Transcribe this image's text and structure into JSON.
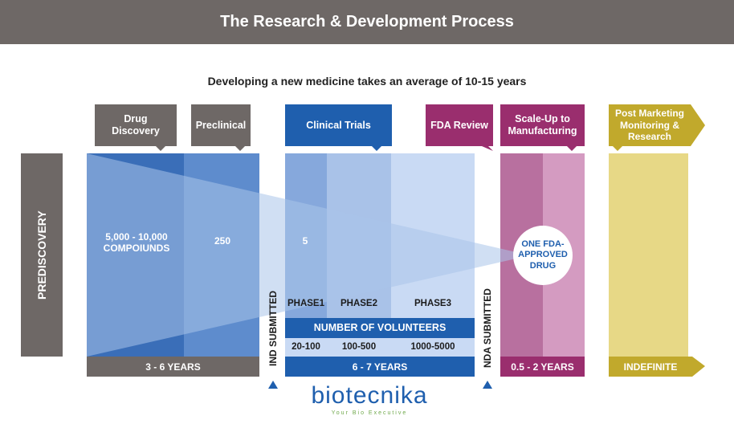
{
  "title": "The Research & Development Process",
  "subtitle": "Developing a new medicine takes an average of 10-15 years",
  "prediscovery": "PREDISCOVERY",
  "stages": {
    "drug_discovery": "Drug Discovery",
    "preclinical": "Preclinical",
    "clinical_trials": "Clinical Trials",
    "fda_review": "FDA Review",
    "scale_up": "Scale-Up to Manufacturing",
    "post_marketing": "Post Marketing Monitoring & Research"
  },
  "counts": {
    "compounds": "5,000 - 10,000 COMPOIUNDS",
    "preclinical": "250",
    "clinical": "5",
    "approved": "ONE FDA-APPROVED DRUG"
  },
  "phases": [
    "PHASE1",
    "PHASE2",
    "PHASE3"
  ],
  "volunteers_header": "NUMBER OF VOLUNTEERS",
  "volunteers": [
    "20-100",
    "100-500",
    "1000-5000"
  ],
  "milestones": {
    "ind": "IND SUBMITTED",
    "nda": "NDA SUBMITTED"
  },
  "durations": {
    "discovery": "3 - 6 YEARS",
    "clinical": "6 - 7 YEARS",
    "scale_up": "0.5 - 2 YEARS",
    "post_marketing": "INDEFINITE"
  },
  "logo": {
    "name": "biotecnika",
    "tagline": "Your Bio Executive"
  },
  "colors": {
    "gray": "#6e6866",
    "blue_dark": "#1f5fae",
    "blue_mid": "#5e8ccd",
    "blue_light": "#a9c2e8",
    "purple": "#9a2e6e",
    "purple_light": "#d49bc1",
    "gold": "#c1a92c",
    "gold_light": "#e7d886"
  }
}
